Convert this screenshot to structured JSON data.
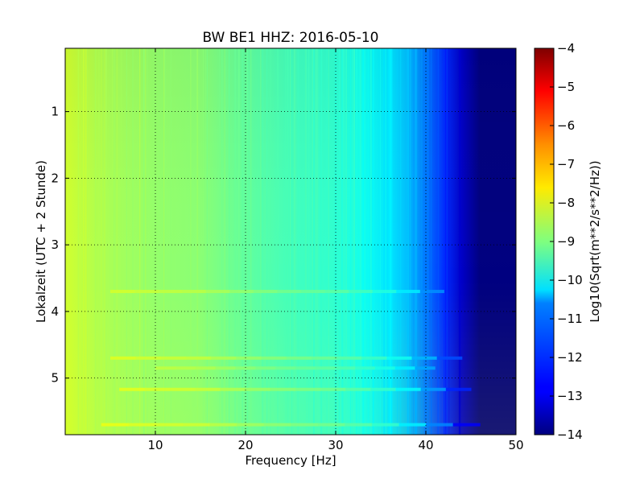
{
  "chart_data": {
    "type": "heatmap",
    "title": "BW BE1 HHZ: 2016-05-10",
    "xlabel": "Frequency [Hz]",
    "ylabel": "Lokalzeit (UTC + 2 Stunde)",
    "xlim": [
      0,
      50
    ],
    "ylim": [
      5.85,
      0.05
    ],
    "y_axis_inverted": true,
    "x_ticks": [
      10,
      20,
      30,
      40,
      50
    ],
    "y_ticks": [
      1,
      2,
      3,
      4,
      5
    ],
    "grid": true,
    "colormap": "jet",
    "colorbar": {
      "label": "Log10(Sqrt(m**2/s**2/Hz))",
      "range": [
        -14,
        -4
      ],
      "ticks": [
        -4,
        -5,
        -6,
        -7,
        -8,
        -9,
        -10,
        -11,
        -12,
        -13,
        -14
      ]
    },
    "value_profile_by_frequency": {
      "frequency_hz": [
        0,
        2,
        5,
        10,
        15,
        20,
        25,
        30,
        33,
        36,
        38,
        40,
        42,
        44,
        46,
        50
      ],
      "log_amplitude": [
        -8.2,
        -8.4,
        -8.6,
        -8.8,
        -8.9,
        -9.3,
        -9.6,
        -9.8,
        -10.1,
        -10.5,
        -10.9,
        -11.6,
        -12.3,
        -13.3,
        -14,
        -14
      ]
    },
    "bright_bands": [
      {
        "time": 3.7,
        "fmin": 5,
        "fmax": 42,
        "delta": 0.5
      },
      {
        "time": 4.7,
        "fmin": 5,
        "fmax": 44,
        "delta": 0.6
      },
      {
        "time": 4.85,
        "fmin": 10,
        "fmax": 41,
        "delta": 0.45
      },
      {
        "time": 5.17,
        "fmin": 6,
        "fmax": 45,
        "delta": 0.7
      },
      {
        "time": 5.7,
        "fmin": 4,
        "fmax": 46,
        "delta": 0.7
      }
    ]
  }
}
